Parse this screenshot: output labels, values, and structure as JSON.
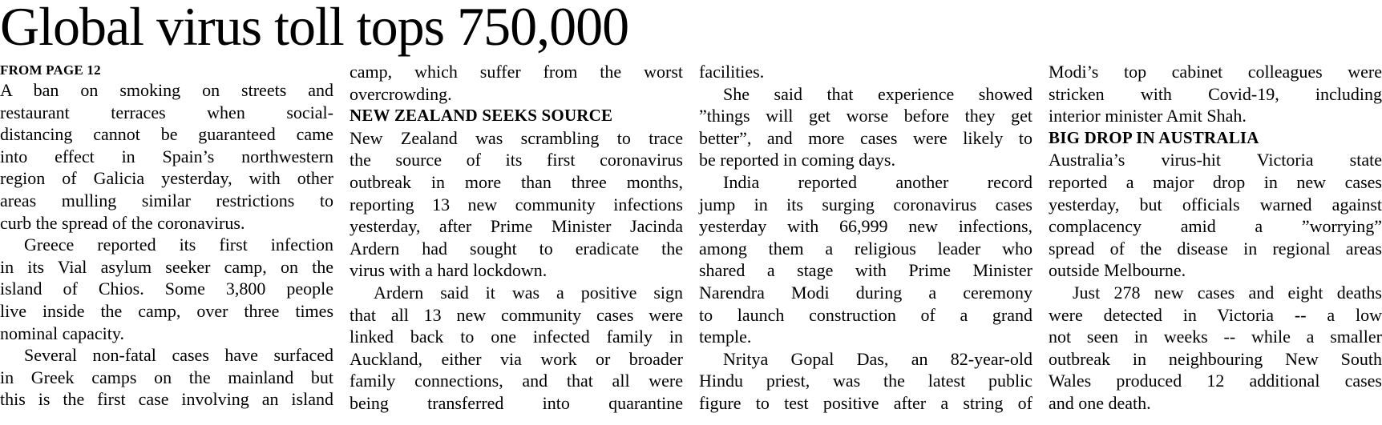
{
  "page": {
    "background_color": "#ffffff",
    "text_color": "#000000"
  },
  "headline": "Global virus toll tops 750,000",
  "columns": [
    {
      "blocks": [
        {
          "type": "kicker",
          "text": "FROM PAGE 12"
        },
        {
          "type": "para",
          "indent": false,
          "flow": false,
          "lines": [
            "A ban on smoking on streets and",
            "restaurant terraces when social-",
            "distancing cannot be guaranteed came",
            "into effect in Spain’s northwestern",
            "region of Galicia yesterday, with other",
            "areas mulling similar restrictions to",
            "curb the spread of the coronavirus."
          ]
        },
        {
          "type": "para",
          "indent": true,
          "flow": false,
          "lines": [
            "Greece reported its first infection",
            "in its Vial asylum seeker camp, on the",
            "island of Chios. Some 3,800 people",
            "live inside the camp, over three times",
            "nominal capacity."
          ]
        },
        {
          "type": "para",
          "indent": true,
          "flow": true,
          "lines": [
            "Several non-fatal cases have surfaced",
            "in Greek camps on the mainland but",
            "this is the first case involving an island"
          ]
        }
      ]
    },
    {
      "blocks": [
        {
          "type": "para",
          "indent": false,
          "flow": false,
          "lines": [
            "camp, which suffer from the worst",
            "overcrowding."
          ]
        },
        {
          "type": "subhead",
          "text": "NEW ZEALAND SEEKS SOURCE"
        },
        {
          "type": "para",
          "indent": false,
          "flow": false,
          "lines": [
            "New Zealand was scrambling to trace",
            "the source of its first coronavirus",
            "outbreak in more than three months,",
            "reporting 13 new community infections",
            "yesterday, after Prime Minister Jacinda",
            "Ardern had sought to eradicate the",
            "virus with a hard lockdown."
          ]
        },
        {
          "type": "para",
          "indent": true,
          "flow": true,
          "lines": [
            "Ardern said it was a positive sign",
            "that all 13 new community cases were",
            "linked back to one infected family in",
            "Auckland, either via work or broader",
            "family connections, and that all were",
            "being transferred into quarantine"
          ]
        }
      ]
    },
    {
      "blocks": [
        {
          "type": "para",
          "indent": false,
          "flow": false,
          "lines": [
            "facilities."
          ]
        },
        {
          "type": "para",
          "indent": true,
          "flow": false,
          "lines": [
            "She said that experience showed",
            "”things will get worse before they get",
            "better”, and more cases were likely to",
            "be reported in coming days."
          ]
        },
        {
          "type": "para",
          "indent": true,
          "flow": false,
          "lines": [
            "India reported another record",
            "jump in its surging coronavirus cases",
            "yesterday with 66,999 new infections,",
            "among them a religious leader who",
            "shared a stage with Prime Minister",
            "Narendra Modi during a ceremony",
            "to launch construction of a grand",
            "temple."
          ]
        },
        {
          "type": "para",
          "indent": true,
          "flow": true,
          "lines": [
            "Nritya Gopal Das, an 82-year-old",
            "Hindu priest, was the latest public",
            "figure to test positive after a string of"
          ]
        }
      ]
    },
    {
      "blocks": [
        {
          "type": "para",
          "indent": false,
          "flow": false,
          "lines": [
            "Modi’s top cabinet colleagues were",
            "stricken with Covid-19, including",
            "interior minister Amit Shah."
          ]
        },
        {
          "type": "subhead",
          "text": "BIG DROP IN AUSTRALIA"
        },
        {
          "type": "para",
          "indent": false,
          "flow": false,
          "lines": [
            "Australia’s virus-hit Victoria state",
            "reported a major drop in new cases",
            "yesterday, but officials warned against",
            "complacency amid a ”worrying”",
            "spread of the disease in regional areas",
            "outside Melbourne."
          ]
        },
        {
          "type": "para",
          "indent": true,
          "flow": false,
          "lines": [
            "Just 278 new cases and eight deaths",
            "were detected in Victoria -- a low",
            "not seen in weeks -- while a smaller",
            "outbreak in neighbouring New South",
            "Wales produced 12 additional cases",
            "and one death."
          ]
        }
      ]
    }
  ]
}
